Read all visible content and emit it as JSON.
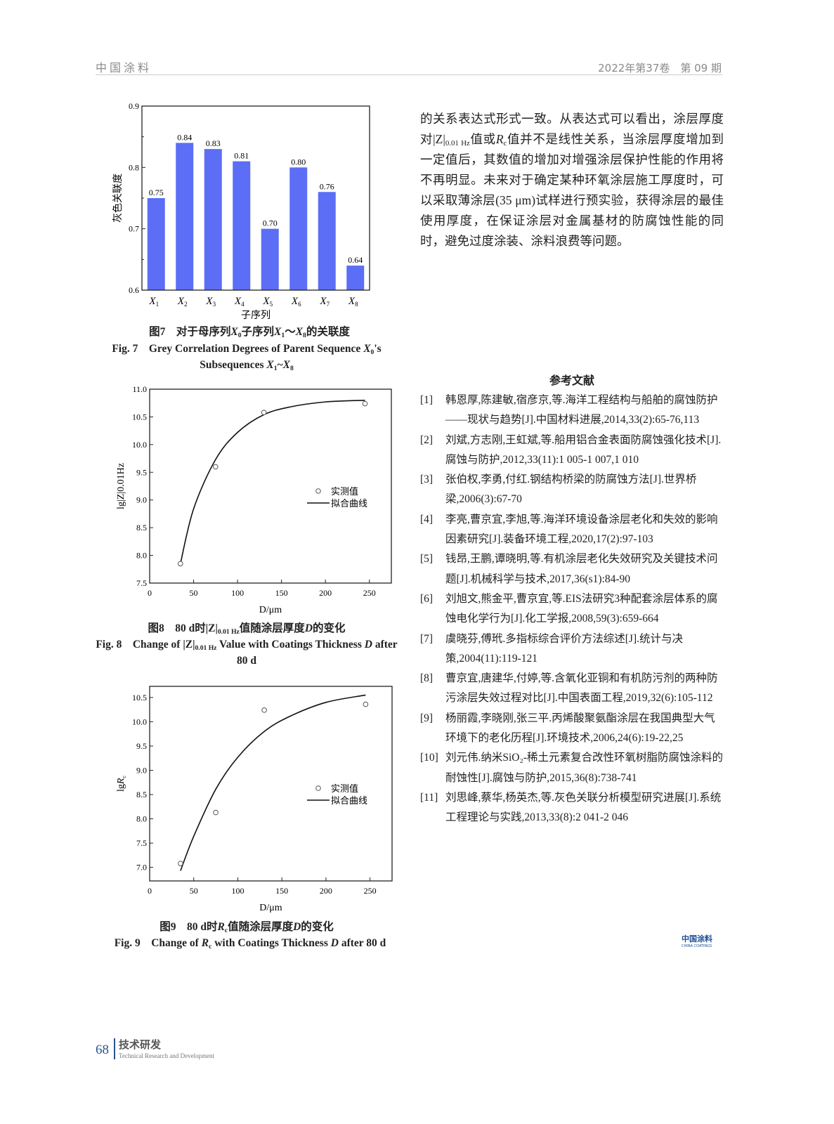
{
  "header": {
    "journal": "中国涂料",
    "issue": "2022年第37卷　第 09 期"
  },
  "body_paragraph": [
    {
      "t": "的关系表达式形式一致。从表达式可以看出，涂层厚度对|Z|"
    },
    {
      "t": "0.01 Hz",
      "s": "sub"
    },
    {
      "t": "值或"
    },
    {
      "t": "R",
      "s": "i"
    },
    {
      "t": "c",
      "s": "sub"
    },
    {
      "t": "值并不是线性关系，当涂层厚度增加到一定值后，其数值的增加对增强涂层保护性能的作用将不再明显。未来对于确定某种环氧涂层施工厚度时，可以采取薄涂层(35 μm)试样进行预实验，获得涂层的最佳使用厚度，在保证涂层对金属基材的防腐蚀性能的同时，避免过度涂装、涂料浪费等问题。"
    }
  ],
  "figures": {
    "fig7": {
      "caption_cn": [
        {
          "t": "图7　对于母序列"
        },
        {
          "t": "X",
          "s": "i"
        },
        {
          "t": "0",
          "s": "sub"
        },
        {
          "t": "子序列"
        },
        {
          "t": "X",
          "s": "i"
        },
        {
          "t": "1",
          "s": "sub"
        },
        {
          "t": "～"
        },
        {
          "t": "X",
          "s": "i"
        },
        {
          "t": "8",
          "s": "sub"
        },
        {
          "t": "的关联度"
        }
      ],
      "caption_en": [
        {
          "t": "Fig. 7　Grey Correlation Degrees of Parent Sequence "
        },
        {
          "t": "X",
          "s": "i"
        },
        {
          "t": "0",
          "s": "sub"
        },
        {
          "t": "'s Subsequences "
        },
        {
          "t": "X",
          "s": "i"
        },
        {
          "t": "1",
          "s": "sub"
        },
        {
          "t": "~"
        },
        {
          "t": "X",
          "s": "i"
        },
        {
          "t": "8",
          "s": "sub"
        }
      ]
    },
    "fig8": {
      "caption_cn": [
        {
          "t": "图8　80 d时|Z|"
        },
        {
          "t": "0.01 Hz",
          "s": "sub"
        },
        {
          "t": "值随涂层厚度"
        },
        {
          "t": "D",
          "s": "i"
        },
        {
          "t": "的变化"
        }
      ],
      "caption_en": [
        {
          "t": "Fig. 8　Change of |Z|"
        },
        {
          "t": "0.01 Hz",
          "s": "sub"
        },
        {
          "t": " Value with Coatings Thickness "
        },
        {
          "t": "D",
          "s": "i"
        },
        {
          "t": " after 80 d"
        }
      ]
    },
    "fig9": {
      "caption_cn": [
        {
          "t": "图9　80 d时"
        },
        {
          "t": "R",
          "s": "i"
        },
        {
          "t": "c",
          "s": "sub"
        },
        {
          "t": "值随涂层厚度"
        },
        {
          "t": "D",
          "s": "i"
        },
        {
          "t": "的变化"
        }
      ],
      "caption_en": [
        {
          "t": "Fig. 9　Change of "
        },
        {
          "t": "R",
          "s": "i"
        },
        {
          "t": "c",
          "s": "sub"
        },
        {
          "t": " with Coatings Thickness "
        },
        {
          "t": "D",
          "s": "i"
        },
        {
          "t": " after 80 d"
        }
      ]
    }
  },
  "chart_data": [
    {
      "type": "bar",
      "categories": [
        "X1",
        "X2",
        "X3",
        "X4",
        "X5",
        "X6",
        "X7",
        "X8"
      ],
      "values": [
        0.75,
        0.84,
        0.83,
        0.81,
        0.7,
        0.8,
        0.76,
        0.64
      ],
      "data_labels": [
        "0.75",
        "0.84",
        "0.83",
        "0.81",
        "0.70",
        "0.80",
        "0.76",
        "0.64"
      ],
      "xlabel": "子序列",
      "ylabel": "灰色关联度",
      "ylim": [
        0.6,
        0.9
      ],
      "yticks": [
        "0.6",
        "0.7",
        "0.8",
        "0.9"
      ],
      "bar_color": "#5b6ef5",
      "grid": false
    },
    {
      "type": "scatter",
      "xlabel": "D/μm",
      "ylabel": "lg|Z|0.01Hz",
      "xlim": [
        0,
        275
      ],
      "ylim": [
        7.5,
        11.0
      ],
      "xticks": [
        "0",
        "50",
        "100",
        "150",
        "200",
        "250"
      ],
      "yticks": [
        "7.5",
        "8.0",
        "8.5",
        "9.0",
        "9.5",
        "10.0",
        "10.5",
        "11.0"
      ],
      "series": [
        {
          "name": "实测值",
          "x": [
            35,
            75,
            130,
            245
          ],
          "y": [
            7.85,
            9.6,
            10.58,
            10.74
          ]
        },
        {
          "name": "拟合曲线",
          "x": [
            35,
            50,
            75,
            100,
            130,
            160,
            200,
            245
          ],
          "y": [
            7.85,
            8.84,
            9.73,
            10.22,
            10.54,
            10.68,
            10.77,
            10.8
          ]
        }
      ],
      "legend": "center-right",
      "grid": false
    },
    {
      "type": "scatter",
      "xlabel": "D/μm",
      "ylabel": "lgRc",
      "xlim": [
        0,
        275
      ],
      "ylim": [
        6.72,
        10.73
      ],
      "xticks": [
        "0",
        "50",
        "100",
        "150",
        "200",
        "250"
      ],
      "yticks": [
        "7.0",
        "7.5",
        "8.0",
        "8.5",
        "9.0",
        "9.5",
        "10.0",
        "10.5"
      ],
      "series": [
        {
          "name": "实测值",
          "x": [
            35,
            75,
            130,
            245
          ],
          "y": [
            7.08,
            8.13,
            10.24,
            10.36
          ]
        },
        {
          "name": "拟合曲线",
          "x": [
            35,
            50,
            75,
            100,
            130,
            160,
            200,
            245
          ],
          "y": [
            6.93,
            7.64,
            8.61,
            9.27,
            9.8,
            10.12,
            10.4,
            10.55
          ]
        }
      ],
      "legend": "center-right",
      "grid": false
    }
  ],
  "references": {
    "title": "参考文献",
    "items": [
      {
        "n": "[1]",
        "t": "韩恩厚,陈建敏,宿彦京,等.海洋工程结构与船舶的腐蚀防护——现状与趋势[J].中国材料进展,2014,33(2):65-76,113"
      },
      {
        "n": "[2]",
        "t": "刘斌,方志刚,王虹斌,等.船用铝合金表面防腐蚀强化技术[J].腐蚀与防护,2012,33(11):1 005-1 007,1 010"
      },
      {
        "n": "[3]",
        "t": "张伯权,李勇,付红.钢结构桥梁的防腐蚀方法[J].世界桥梁,2006(3):67-70"
      },
      {
        "n": "[4]",
        "t": "李亮,曹京宜,李旭,等.海洋环境设备涂层老化和失效的影响因素研究[J].装备环境工程,2020,17(2):97-103"
      },
      {
        "n": "[5]",
        "t": "钱昂,王鹏,谭晓明,等.有机涂层老化失效研究及关键技术问题[J].机械科学与技术,2017,36(s1):84-90"
      },
      {
        "n": "[6]",
        "t": "刘旭文,熊金平,曹京宜,等.EIS法研究3种配套涂层体系的腐蚀电化学行为[J].化工学报,2008,59(3):659-664"
      },
      {
        "n": "[7]",
        "t": "虞晓芬,傅玳.多指标综合评价方法综述[J].统计与决策,2004(11):119-121"
      },
      {
        "n": "[8]",
        "t": "曹京宜,唐建华,付婷,等.含氧化亚铜和有机防污剂的两种防污涂层失效过程对比[J].中国表面工程,2019,32(6):105-112"
      },
      {
        "n": "[9]",
        "t": "杨丽霞,李晓刚,张三平.丙烯酸聚氨酯涂层在我国典型大气环境下的老化历程[J].环境技术,2006,24(6):19-22,25"
      },
      {
        "n": "[10]",
        "t": "刘元伟.纳米SiO₂-稀土元素复合改性环氧树脂防腐蚀涂料的耐蚀性[J].腐蚀与防护,2015,36(8):738-741"
      },
      {
        "n": "[11]",
        "t": "刘思峰,蔡华,杨英杰,等.灰色关联分析模型研究进展[J].系统工程理论与实践,2013,33(8):2 041-2 046"
      }
    ]
  },
  "logo": {
    "cn": "中国涂料",
    "en": "CHINA COATINGS"
  },
  "footer": {
    "page": "68",
    "section_cn": "技术研发",
    "section_en": "Technical Research and Development"
  }
}
